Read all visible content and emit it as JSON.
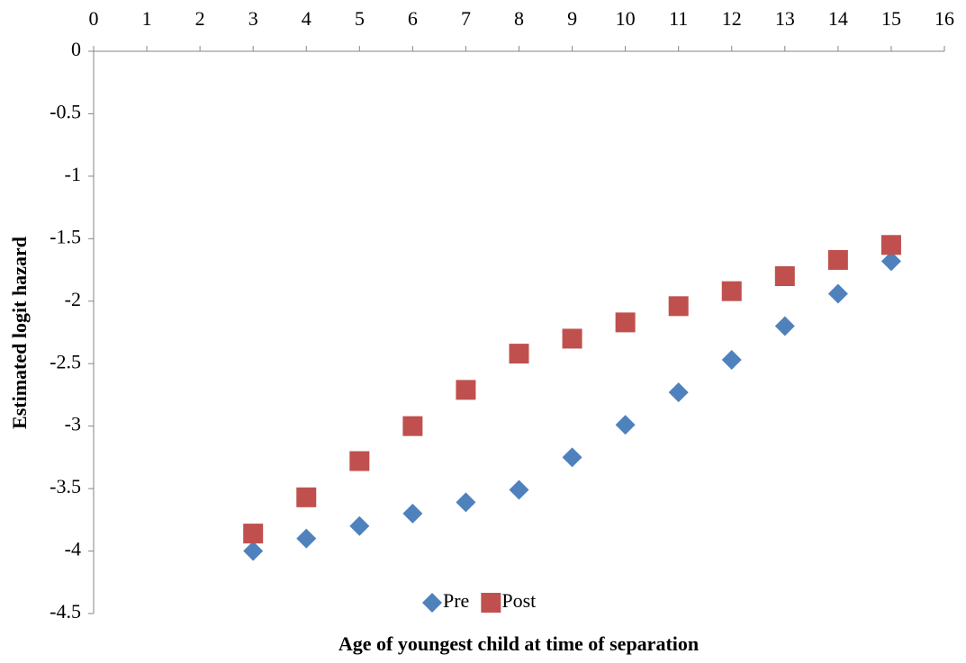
{
  "chart_data": {
    "type": "scatter",
    "x_label": "Age of youngest child at time of separation",
    "y_label": "Estimated logit hazard",
    "x": [
      3,
      4,
      5,
      6,
      7,
      8,
      9,
      10,
      11,
      12,
      13,
      14,
      15
    ],
    "series": [
      {
        "name": "Pre",
        "color": "#4f81bd",
        "marker": "diamond",
        "values": [
          -4.0,
          -3.9,
          -3.8,
          -3.7,
          -3.61,
          -3.51,
          -3.25,
          -2.99,
          -2.73,
          -2.47,
          -2.2,
          -1.94,
          -1.68
        ]
      },
      {
        "name": "Post",
        "color": "#c0504d",
        "marker": "square",
        "values": [
          -3.86,
          -3.57,
          -3.28,
          -3.0,
          -2.71,
          -2.42,
          -2.3,
          -2.17,
          -2.04,
          -1.92,
          -1.8,
          -1.67,
          -1.55
        ]
      }
    ],
    "xlim": [
      0,
      16
    ],
    "xticks": [
      0,
      1,
      2,
      3,
      4,
      5,
      6,
      7,
      8,
      9,
      10,
      11,
      12,
      13,
      14,
      15,
      16
    ],
    "ylim": [
      -4.5,
      0
    ],
    "yticks": [
      0,
      -0.5,
      -1,
      -1.5,
      -2,
      -2.5,
      -3,
      -3.5,
      -4,
      -4.5
    ],
    "legend": "bottom"
  }
}
